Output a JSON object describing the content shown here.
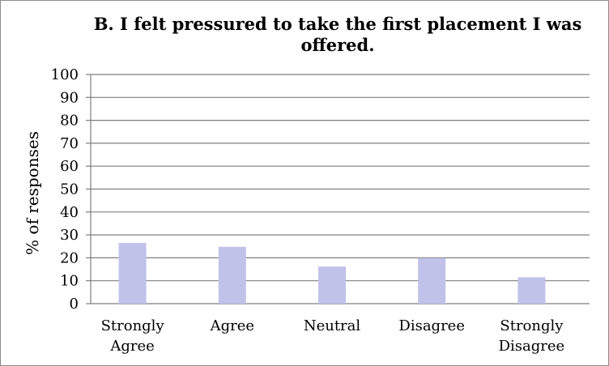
{
  "chart_data": {
    "type": "bar",
    "title_lines": [
      "B. I felt pressured to take the first placement I was",
      "offered."
    ],
    "ylabel": "% of responses",
    "xlabel": "",
    "categories": [
      [
        "Strongly",
        "Agree"
      ],
      [
        "Agree"
      ],
      [
        "Neutral"
      ],
      [
        "Disagree"
      ],
      [
        "Strongly",
        "Disagree"
      ]
    ],
    "values": [
      26.5,
      24.8,
      16.2,
      19.9,
      11.5
    ],
    "ylim": [
      0,
      100
    ],
    "yticks": [
      "0",
      "10",
      "20",
      "30",
      "40",
      "50",
      "60",
      "70",
      "80",
      "90",
      "100"
    ],
    "grid": true,
    "legend": "none",
    "bar_color": "#c0c2ea",
    "grid_color": "#7f7f7f"
  }
}
